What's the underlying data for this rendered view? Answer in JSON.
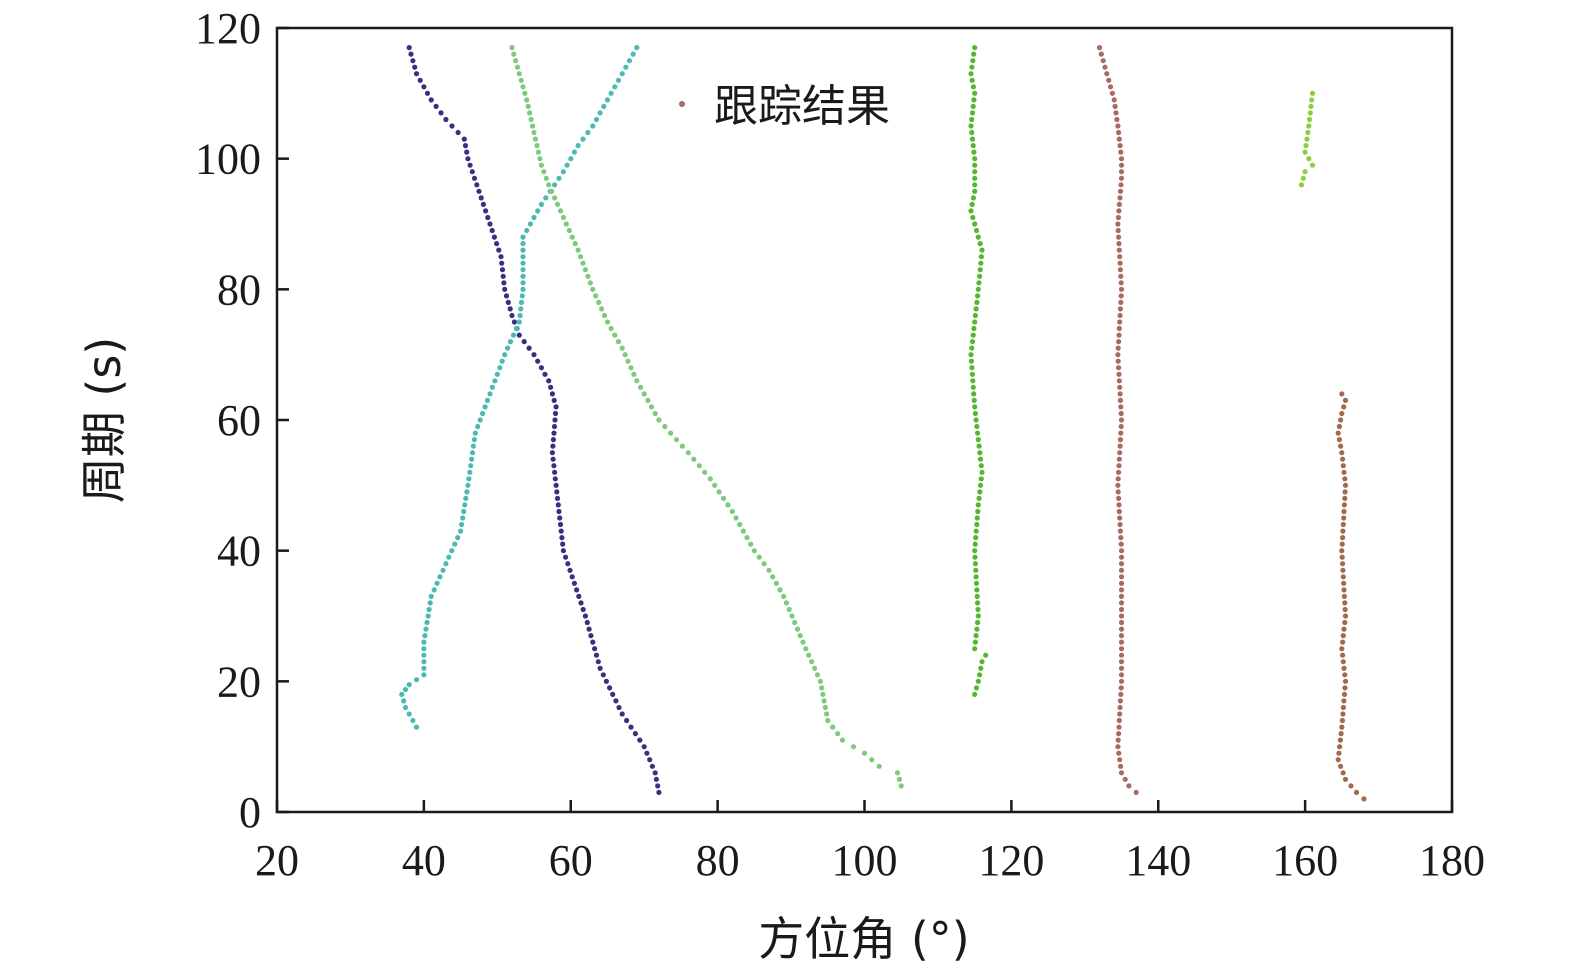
{
  "chart_data": {
    "type": "scatter",
    "xlabel": "方位角 (°)",
    "ylabel": "周期 (s)",
    "xlim": [
      20,
      180
    ],
    "ylim": [
      0,
      120
    ],
    "xticks": [
      20,
      40,
      60,
      80,
      100,
      120,
      140,
      160,
      180
    ],
    "yticks": [
      0,
      20,
      40,
      60,
      80,
      100,
      120
    ],
    "grid": false,
    "legend": {
      "label": "跟踪结果",
      "position": "top",
      "color": "#a86a63"
    },
    "series": [
      {
        "color": "#3b2f82",
        "points": [
          [
            72,
            3
          ],
          [
            71.5,
            6
          ],
          [
            70,
            10
          ],
          [
            67,
            15
          ],
          [
            64,
            22
          ],
          [
            62,
            30
          ],
          [
            59,
            40
          ],
          [
            57.5,
            55
          ],
          [
            58,
            62
          ],
          [
            57,
            66
          ],
          [
            55,
            70
          ],
          [
            53,
            73
          ],
          [
            52,
            76
          ],
          [
            51,
            80
          ],
          [
            50.5,
            85
          ],
          [
            49,
            90
          ],
          [
            47.5,
            95
          ],
          [
            46,
            100
          ],
          [
            45.5,
            103
          ],
          [
            43,
            106
          ],
          [
            41,
            109
          ],
          [
            39,
            113
          ],
          [
            38,
            117
          ]
        ]
      },
      {
        "color": "#4bbab2",
        "points": [
          [
            39,
            13
          ],
          [
            37.5,
            16
          ],
          [
            37,
            18
          ],
          [
            38,
            19.5
          ],
          [
            40,
            21
          ],
          [
            40,
            26
          ],
          [
            41,
            33
          ],
          [
            43,
            38
          ],
          [
            45,
            43
          ],
          [
            46,
            50
          ],
          [
            47,
            58
          ],
          [
            49,
            64
          ],
          [
            51,
            70
          ],
          [
            53,
            75
          ],
          [
            53.5,
            80
          ],
          [
            53.5,
            88
          ],
          [
            56,
            93
          ],
          [
            59,
            98
          ],
          [
            61,
            102
          ],
          [
            63,
            105
          ],
          [
            65,
            109
          ],
          [
            67,
            113
          ],
          [
            69,
            117
          ]
        ]
      },
      {
        "color": "#7dca7a",
        "points": [
          [
            105,
            4
          ],
          [
            104.5,
            6
          ],
          [
            102,
            7
          ],
          [
            100,
            9
          ],
          [
            97,
            11
          ],
          [
            95,
            14
          ],
          [
            94,
            20
          ],
          [
            92,
            25
          ],
          [
            89,
            33
          ],
          [
            87,
            37
          ],
          [
            85,
            40
          ],
          [
            82,
            46
          ],
          [
            79,
            51
          ],
          [
            76,
            55
          ],
          [
            72,
            60
          ],
          [
            69,
            66
          ],
          [
            67,
            71
          ],
          [
            65,
            75
          ],
          [
            63,
            80
          ],
          [
            61,
            86
          ],
          [
            59,
            91
          ],
          [
            57,
            96
          ],
          [
            56,
            99
          ],
          [
            55,
            104
          ],
          [
            54,
            109
          ],
          [
            53,
            113
          ],
          [
            52,
            117
          ]
        ]
      },
      {
        "color": "#56b531",
        "points": [
          [
            115,
            18
          ],
          [
            115.5,
            20
          ],
          [
            116,
            23
          ],
          [
            116.5,
            24
          ],
          [
            115,
            25
          ],
          [
            115.5,
            30
          ],
          [
            115,
            40
          ],
          [
            115.5,
            47
          ],
          [
            116,
            52
          ],
          [
            115.5,
            57
          ],
          [
            115,
            62
          ],
          [
            114.5,
            70
          ],
          [
            115.5,
            80
          ],
          [
            116,
            86
          ],
          [
            115,
            90
          ],
          [
            114.5,
            92
          ],
          [
            115,
            95
          ],
          [
            115,
            100
          ],
          [
            114.5,
            105
          ],
          [
            115,
            110
          ],
          [
            114.5,
            113
          ],
          [
            115,
            117
          ]
        ]
      },
      {
        "color": "#a86a63",
        "points": [
          [
            137,
            3
          ],
          [
            136,
            4
          ],
          [
            135,
            6
          ],
          [
            134.5,
            10
          ],
          [
            135,
            20
          ],
          [
            135,
            30
          ],
          [
            135,
            40
          ],
          [
            134.5,
            50
          ],
          [
            135,
            60
          ],
          [
            134.5,
            70
          ],
          [
            135,
            80
          ],
          [
            134.5,
            90
          ],
          [
            135,
            97
          ],
          [
            135,
            100
          ],
          [
            134.5,
            105
          ],
          [
            134,
            109
          ],
          [
            133,
            113
          ],
          [
            132,
            117
          ]
        ]
      },
      {
        "color": "#8ccf3e",
        "points": [
          [
            159.5,
            96
          ],
          [
            160,
            98
          ],
          [
            161,
            99
          ],
          [
            160,
            101
          ],
          [
            160.5,
            105
          ],
          [
            161,
            110
          ]
        ]
      },
      {
        "color": "#a06a4e",
        "points": [
          [
            168,
            2
          ],
          [
            167,
            3
          ],
          [
            165.5,
            5
          ],
          [
            164.5,
            8
          ],
          [
            165,
            13
          ],
          [
            165.5,
            20
          ],
          [
            165,
            25
          ],
          [
            165.5,
            30
          ],
          [
            165,
            40
          ],
          [
            165.5,
            50
          ],
          [
            165,
            55
          ],
          [
            164.5,
            58
          ],
          [
            165,
            61
          ],
          [
            165.5,
            63
          ],
          [
            165,
            64
          ]
        ]
      }
    ]
  }
}
